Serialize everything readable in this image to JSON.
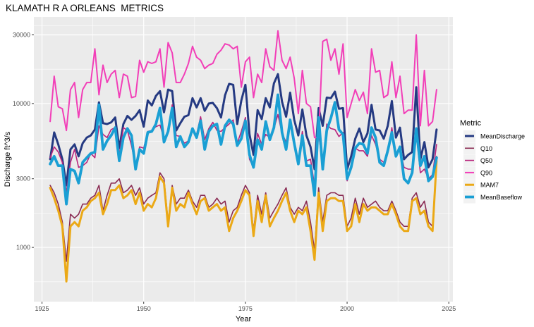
{
  "chart_data": {
    "type": "line",
    "title": "KLAMATH R A ORLEANS  METRICS",
    "xlabel": "Year",
    "ylabel": "Discharge ft^3/s",
    "y_scale": "log10",
    "xlim": [
      1923,
      2026
    ],
    "ylim": [
      420,
      40000
    ],
    "x_ticks": [
      1925,
      1950,
      1975,
      2000,
      2025
    ],
    "y_ticks": [
      1000,
      3000,
      10000,
      30000
    ],
    "y_tick_labels": [
      "1000",
      "3000",
      "10000",
      "30000"
    ],
    "grid": true,
    "legend_title": "Metric",
    "legend_position": "right",
    "x": [
      1927,
      1928,
      1929,
      1930,
      1931,
      1932,
      1933,
      1934,
      1935,
      1936,
      1937,
      1938,
      1939,
      1940,
      1941,
      1942,
      1943,
      1944,
      1945,
      1946,
      1947,
      1948,
      1949,
      1950,
      1951,
      1952,
      1953,
      1954,
      1955,
      1956,
      1957,
      1958,
      1959,
      1960,
      1961,
      1962,
      1963,
      1964,
      1965,
      1966,
      1967,
      1968,
      1969,
      1970,
      1971,
      1972,
      1973,
      1974,
      1975,
      1976,
      1977,
      1978,
      1979,
      1980,
      1981,
      1982,
      1983,
      1984,
      1985,
      1986,
      1987,
      1988,
      1989,
      1990,
      1991,
      1992,
      1993,
      1994,
      1995,
      1996,
      1997,
      1998,
      1999,
      2000,
      2001,
      2002,
      2003,
      2004,
      2005,
      2006,
      2007,
      2008,
      2009,
      2010,
      2011,
      2012,
      2013,
      2014,
      2015,
      2016,
      2017,
      2018,
      2019,
      2020,
      2021,
      2022
    ],
    "series": [
      {
        "name": "MeanDischarge",
        "color": "#253a82",
        "width": 3,
        "values": [
          4100,
          6300,
          5200,
          4100,
          2700,
          4800,
          5200,
          4300,
          5300,
          5800,
          6000,
          6600,
          10200,
          7300,
          7200,
          7400,
          8000,
          4900,
          7200,
          8200,
          7700,
          8200,
          9000,
          6900,
          10500,
          9700,
          11300,
          12200,
          8700,
          12500,
          12200,
          6500,
          7300,
          8100,
          8300,
          10900,
          9400,
          10900,
          8900,
          10000,
          10100,
          9300,
          8000,
          11400,
          13700,
          13500,
          7200,
          10500,
          13500,
          6100,
          4400,
          9000,
          7800,
          10900,
          9400,
          13800,
          16000,
          10300,
          8100,
          11900,
          7700,
          6000,
          9100,
          6000,
          5000,
          3500,
          9300,
          7000,
          11000,
          10900,
          12100,
          9200,
          9300,
          3500,
          4300,
          5700,
          6700,
          5400,
          6200,
          9800,
          6600,
          6500,
          5700,
          7000,
          10400,
          5800,
          6800,
          4100,
          4400,
          4600,
          13000,
          4100,
          5400,
          3600,
          4100,
          6600
        ]
      },
      {
        "name": "Q10",
        "color": "#8a2a52",
        "width": 1.6,
        "values": [
          2700,
          2400,
          2000,
          1500,
          800,
          1700,
          1600,
          1700,
          2000,
          2000,
          2200,
          2300,
          2700,
          1800,
          2300,
          2800,
          2800,
          3000,
          2400,
          2500,
          2700,
          2300,
          2600,
          2000,
          2200,
          2300,
          2400,
          3300,
          3000,
          1500,
          2700,
          2000,
          2200,
          2200,
          2500,
          2100,
          1900,
          2300,
          2300,
          1900,
          2000,
          2200,
          2000,
          2100,
          1500,
          1800,
          1900,
          2300,
          2700,
          2400,
          1300,
          2300,
          1700,
          2400,
          1600,
          1800,
          2000,
          2300,
          2600,
          1900,
          1700,
          1900,
          1800,
          2100,
          1500,
          950,
          2600,
          1500,
          2300,
          2400,
          2400,
          2300,
          2300,
          1400,
          1600,
          2200,
          1700,
          2200,
          1900,
          2000,
          2100,
          1900,
          1800,
          1800,
          2100,
          1800,
          1500,
          1400,
          1400,
          2200,
          2400,
          1900,
          2100,
          1500,
          1400,
          4300
        ]
      },
      {
        "name": "Q50",
        "color": "#b8237c",
        "width": 1.6,
        "values": [
          4200,
          5000,
          4600,
          3900,
          2400,
          3900,
          4800,
          3600,
          3700,
          3900,
          4500,
          4200,
          7000,
          6100,
          5800,
          6600,
          6800,
          4400,
          6800,
          6500,
          5100,
          3700,
          5000,
          4900,
          6400,
          6500,
          6900,
          7100,
          5700,
          6300,
          9800,
          6000,
          5900,
          5300,
          5500,
          6500,
          6100,
          8100,
          5600,
          6700,
          7400,
          6500,
          6400,
          6800,
          7200,
          7700,
          5300,
          6400,
          8000,
          4100,
          3600,
          6200,
          5200,
          6100,
          5800,
          6700,
          8400,
          6200,
          5400,
          7500,
          5300,
          4100,
          6400,
          4000,
          4100,
          2700,
          6200,
          3600,
          7200,
          6700,
          6600,
          5900,
          6300,
          2900,
          3600,
          4900,
          4700,
          4700,
          4300,
          6000,
          5200,
          4100,
          3900,
          4600,
          6800,
          4300,
          4800,
          3600,
          3500,
          3500,
          6200,
          3300,
          3500,
          3000,
          3200,
          5200
        ]
      },
      {
        "name": "Q90",
        "color": "#f23fb8",
        "width": 2,
        "values": [
          7500,
          15500,
          9500,
          9200,
          6500,
          12500,
          14000,
          8000,
          12500,
          14000,
          14000,
          24000,
          11500,
          18500,
          14000,
          16000,
          17000,
          11000,
          16000,
          15500,
          11000,
          11200,
          20000,
          16500,
          19500,
          19000,
          19500,
          24000,
          13000,
          26500,
          22500,
          14000,
          14000,
          16000,
          19000,
          25000,
          21000,
          20000,
          17500,
          18500,
          19000,
          22000,
          23500,
          26000,
          25500,
          24000,
          25000,
          13000,
          19500,
          21000,
          11000,
          16000,
          14000,
          24000,
          18000,
          17000,
          32000,
          20000,
          17500,
          21000,
          15000,
          8500,
          17000,
          10000,
          9500,
          5800,
          5800,
          27000,
          28000,
          20000,
          24000,
          16000,
          26000,
          8000,
          10000,
          12500,
          10500,
          12000,
          8500,
          24000,
          16500,
          17000,
          11000,
          11500,
          19500,
          11000,
          15500,
          8500,
          9000,
          9000,
          30000,
          7000,
          17000,
          7000,
          7500,
          12500
        ]
      },
      {
        "name": "MAM7",
        "color": "#eba916",
        "width": 3,
        "values": [
          2600,
          2200,
          1800,
          1400,
          580,
          1400,
          1500,
          1400,
          1800,
          1900,
          2100,
          2200,
          2400,
          1700,
          2000,
          2500,
          2500,
          2700,
          2200,
          2300,
          2500,
          2000,
          2400,
          1800,
          2000,
          1900,
          2200,
          3100,
          2800,
          1400,
          2600,
          1800,
          2000,
          1900,
          2400,
          2000,
          1700,
          2100,
          2200,
          1800,
          1900,
          2000,
          1800,
          1900,
          1300,
          1600,
          1800,
          2100,
          2500,
          2300,
          1200,
          2100,
          1500,
          2300,
          1400,
          1600,
          1800,
          2100,
          2400,
          1800,
          1500,
          1800,
          1700,
          1900,
          1300,
          820,
          2400,
          1300,
          2100,
          2200,
          2200,
          2100,
          2100,
          1300,
          1400,
          2000,
          1500,
          2000,
          1800,
          1900,
          1900,
          1800,
          1700,
          1700,
          2000,
          1700,
          1400,
          1300,
          1300,
          2100,
          2200,
          1700,
          1800,
          1400,
          1300,
          4000
        ]
      },
      {
        "name": "MeanBaseflow",
        "color": "#1a9fd4",
        "width": 3.8,
        "values": [
          3800,
          4300,
          3700,
          3700,
          2000,
          3500,
          3400,
          2800,
          3900,
          4200,
          4500,
          4600,
          9800,
          4800,
          5500,
          6000,
          6800,
          4000,
          5800,
          6700,
          6000,
          3500,
          4800,
          4500,
          6300,
          6400,
          7200,
          9300,
          5400,
          6400,
          9300,
          5000,
          5900,
          5000,
          5400,
          6700,
          5800,
          7600,
          4800,
          6400,
          7000,
          7200,
          5200,
          7000,
          7700,
          7200,
          5100,
          5700,
          7600,
          4400,
          3600,
          5600,
          4800,
          7500,
          5600,
          6800,
          11500,
          6300,
          4800,
          7700,
          5300,
          3800,
          6000,
          3700,
          3700,
          2300,
          8000,
          3500,
          6500,
          7900,
          10200,
          6600,
          6100,
          3000,
          3600,
          4900,
          5300,
          5200,
          4500,
          6800,
          5800,
          3900,
          3700,
          4700,
          6300,
          4300,
          5000,
          3000,
          2800,
          3300,
          6700,
          3700,
          4300,
          2900,
          3100,
          4200
        ]
      }
    ]
  }
}
